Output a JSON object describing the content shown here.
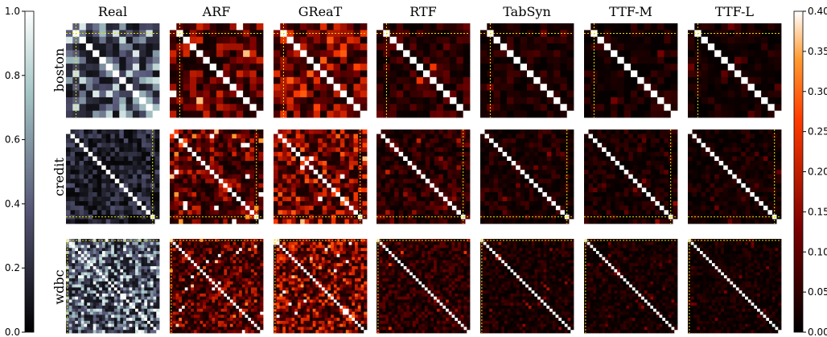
{
  "chart_data": {
    "type": "heatmap",
    "columns": [
      "Real",
      "ARF",
      "GReaT",
      "RTF",
      "TabSyn",
      "TTF-M",
      "TTF-L"
    ],
    "rows": [
      "boston",
      "credit",
      "wdbc"
    ],
    "colorbars": [
      {
        "side": "left",
        "applies_to": "Real",
        "colormap": "bone",
        "range": [
          0.0,
          1.0
        ],
        "ticks": [
          "0.0",
          "0.2",
          "0.4",
          "0.6",
          "0.8",
          "1.0"
        ]
      },
      {
        "side": "right",
        "applies_to": "ARF, GReaT, RTF, TabSyn, TTF-M, TTF-L",
        "colormap": "gist_heat",
        "range": [
          0.0,
          0.4
        ],
        "ticks": [
          "0.00",
          "0.05",
          "0.10",
          "0.15",
          "0.20",
          "0.25",
          "0.30",
          "0.35",
          "0.40"
        ]
      }
    ],
    "matrix_sizes": {
      "boston": 14,
      "credit": 21,
      "wdbc": 31
    },
    "target_line_index": {
      "boston": 1,
      "credit": 19,
      "wdbc": 0
    },
    "error_level": {
      "ARF": 0.12,
      "GReaT": 0.16,
      "RTF": 0.06,
      "TabSyn": 0.04,
      "TTF-M": 0.035,
      "TTF-L": 0.03
    },
    "real_level": {
      "boston": 0.5,
      "credit": 0.2,
      "wdbc": 0.55
    },
    "diagonal_value": 1.0,
    "grid": false
  }
}
